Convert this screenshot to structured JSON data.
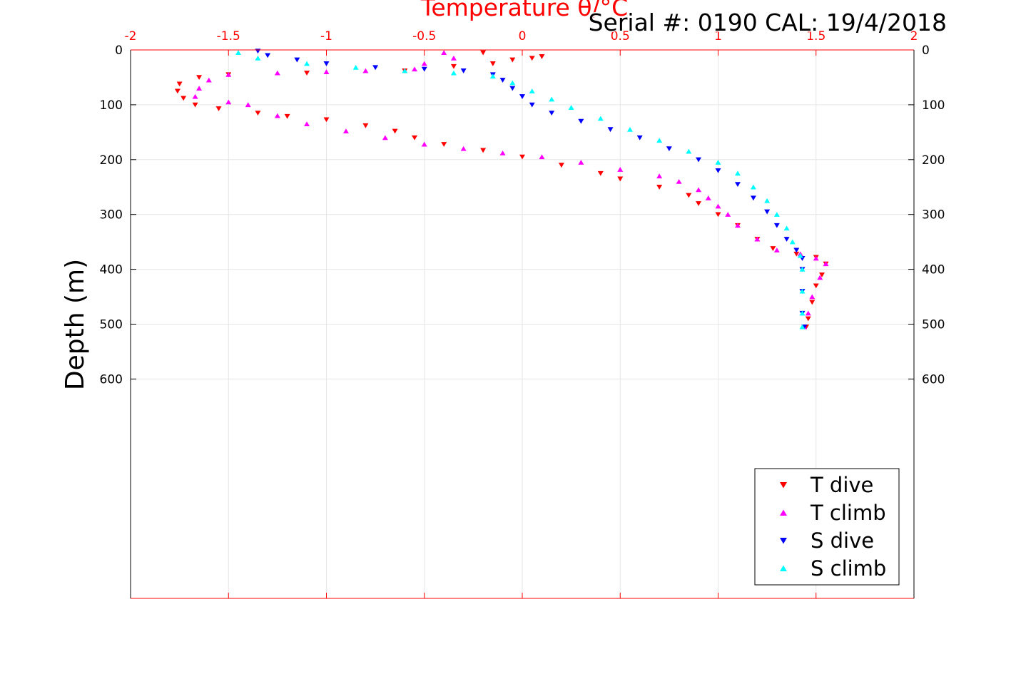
{
  "chart_data": {
    "type": "scatter",
    "title": "Temperature θ/°C",
    "annotation": "Serial #: 0190  CAL: 19/4/2018",
    "xlabel": "Temperature θ/°C",
    "ylabel": "Depth (m)",
    "xlim": [
      -2,
      2
    ],
    "ylim": [
      0,
      1000
    ],
    "y_reversed": true,
    "x_axis_position": "top",
    "y_ticks_both_sides": true,
    "grid": true,
    "x_ticks": [
      -2,
      -1.5,
      -1,
      -0.5,
      0,
      0.5,
      1,
      1.5,
      2
    ],
    "x_tick_labels": [
      "-2",
      "-1.5",
      "-1",
      "-0.5",
      "0",
      "0.5",
      "1",
      "1.5",
      "2"
    ],
    "y_ticks": [
      0,
      100,
      200,
      300,
      400,
      500,
      600
    ],
    "y_tick_labels": [
      "0",
      "100",
      "200",
      "300",
      "400",
      "500",
      "600"
    ],
    "legend_position": "bottom-right",
    "series": [
      {
        "name": "T dive",
        "color": "#ff0000",
        "marker": "triangle-down",
        "points": [
          [
            0.1,
            12
          ],
          [
            0.05,
            15
          ],
          [
            -0.05,
            18
          ],
          [
            -0.2,
            5
          ],
          [
            -0.15,
            25
          ],
          [
            -0.35,
            30
          ],
          [
            -0.6,
            38
          ],
          [
            -1.1,
            42
          ],
          [
            -1.5,
            45
          ],
          [
            -1.65,
            50
          ],
          [
            -1.75,
            62
          ],
          [
            -1.76,
            75
          ],
          [
            -1.73,
            88
          ],
          [
            -1.67,
            100
          ],
          [
            -1.55,
            107
          ],
          [
            -1.35,
            115
          ],
          [
            -1.2,
            121
          ],
          [
            -1.0,
            127
          ],
          [
            -0.8,
            138
          ],
          [
            -0.65,
            148
          ],
          [
            -0.55,
            160
          ],
          [
            -0.4,
            172
          ],
          [
            -0.2,
            183
          ],
          [
            0.0,
            195
          ],
          [
            0.2,
            210
          ],
          [
            0.4,
            225
          ],
          [
            0.5,
            235
          ],
          [
            0.7,
            250
          ],
          [
            0.85,
            265
          ],
          [
            0.9,
            280
          ],
          [
            1.0,
            300
          ],
          [
            1.1,
            320
          ],
          [
            1.2,
            345
          ],
          [
            1.28,
            362
          ],
          [
            1.4,
            372
          ],
          [
            1.5,
            378
          ],
          [
            1.55,
            390
          ],
          [
            1.53,
            410
          ],
          [
            1.5,
            430
          ],
          [
            1.48,
            460
          ],
          [
            1.46,
            490
          ],
          [
            1.45,
            505
          ]
        ]
      },
      {
        "name": "T climb",
        "color": "#ff00ff",
        "marker": "triangle-up",
        "points": [
          [
            -0.4,
            5
          ],
          [
            -0.35,
            15
          ],
          [
            -0.5,
            25
          ],
          [
            -0.55,
            35
          ],
          [
            -0.8,
            38
          ],
          [
            -1.0,
            40
          ],
          [
            -1.25,
            42
          ],
          [
            -1.5,
            45
          ],
          [
            -1.6,
            55
          ],
          [
            -1.65,
            70
          ],
          [
            -1.67,
            85
          ],
          [
            -1.5,
            95
          ],
          [
            -1.4,
            100
          ],
          [
            -1.25,
            120
          ],
          [
            -1.1,
            135
          ],
          [
            -0.9,
            148
          ],
          [
            -0.7,
            160
          ],
          [
            -0.5,
            172
          ],
          [
            -0.3,
            180
          ],
          [
            -0.1,
            188
          ],
          [
            0.1,
            195
          ],
          [
            0.3,
            205
          ],
          [
            0.5,
            218
          ],
          [
            0.7,
            230
          ],
          [
            0.8,
            240
          ],
          [
            0.9,
            255
          ],
          [
            0.95,
            270
          ],
          [
            1.0,
            285
          ],
          [
            1.05,
            300
          ],
          [
            1.1,
            320
          ],
          [
            1.2,
            345
          ],
          [
            1.3,
            365
          ],
          [
            1.42,
            372
          ],
          [
            1.5,
            380
          ],
          [
            1.55,
            390
          ],
          [
            1.52,
            415
          ],
          [
            1.48,
            450
          ],
          [
            1.46,
            480
          ],
          [
            1.44,
            505
          ]
        ]
      },
      {
        "name": "S dive",
        "color": "#0000ff",
        "marker": "triangle-down",
        "points": [
          [
            -1.35,
            2
          ],
          [
            -1.3,
            10
          ],
          [
            -1.15,
            18
          ],
          [
            -1.0,
            25
          ],
          [
            -0.75,
            32
          ],
          [
            -0.5,
            35
          ],
          [
            -0.3,
            38
          ],
          [
            -0.15,
            45
          ],
          [
            -0.1,
            55
          ],
          [
            -0.05,
            70
          ],
          [
            0.0,
            85
          ],
          [
            0.05,
            100
          ],
          [
            0.15,
            115
          ],
          [
            0.3,
            130
          ],
          [
            0.45,
            145
          ],
          [
            0.6,
            160
          ],
          [
            0.75,
            180
          ],
          [
            0.9,
            200
          ],
          [
            1.0,
            220
          ],
          [
            1.1,
            245
          ],
          [
            1.18,
            270
          ],
          [
            1.25,
            295
          ],
          [
            1.3,
            320
          ],
          [
            1.35,
            345
          ],
          [
            1.4,
            365
          ],
          [
            1.43,
            380
          ],
          [
            1.43,
            400
          ],
          [
            1.43,
            440
          ],
          [
            1.43,
            480
          ],
          [
            1.44,
            505
          ]
        ]
      },
      {
        "name": "S climb",
        "color": "#00ffff",
        "marker": "triangle-up",
        "points": [
          [
            -1.45,
            5
          ],
          [
            -1.35,
            15
          ],
          [
            -1.1,
            25
          ],
          [
            -0.85,
            32
          ],
          [
            -0.6,
            38
          ],
          [
            -0.35,
            42
          ],
          [
            -0.15,
            48
          ],
          [
            -0.05,
            60
          ],
          [
            0.05,
            75
          ],
          [
            0.15,
            90
          ],
          [
            0.25,
            105
          ],
          [
            0.4,
            125
          ],
          [
            0.55,
            145
          ],
          [
            0.7,
            165
          ],
          [
            0.85,
            185
          ],
          [
            1.0,
            205
          ],
          [
            1.1,
            225
          ],
          [
            1.18,
            250
          ],
          [
            1.25,
            275
          ],
          [
            1.3,
            300
          ],
          [
            1.35,
            325
          ],
          [
            1.38,
            350
          ],
          [
            1.42,
            375
          ],
          [
            1.43,
            400
          ],
          [
            1.43,
            440
          ],
          [
            1.43,
            480
          ],
          [
            1.43,
            505
          ]
        ]
      }
    ]
  }
}
